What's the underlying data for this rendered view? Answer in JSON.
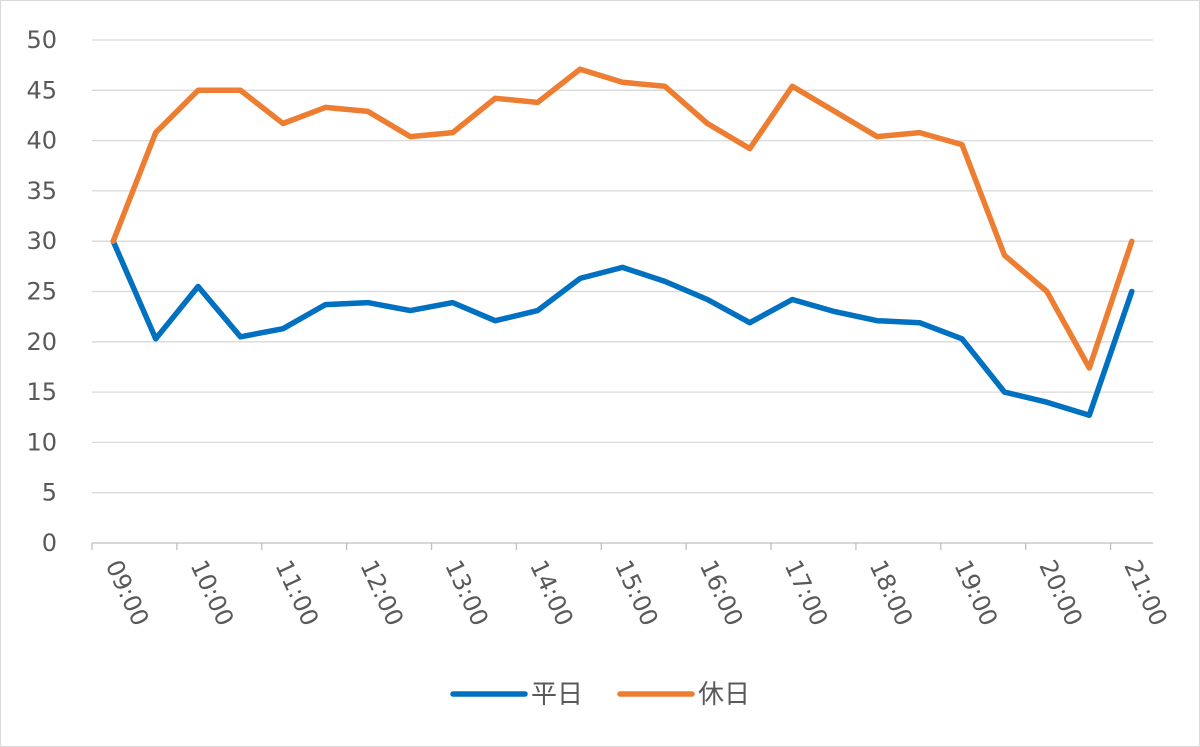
{
  "chart_data": {
    "type": "line",
    "title": "",
    "xlabel": "",
    "ylabel": "",
    "ylim": [
      0,
      50
    ],
    "ytick_step": 5,
    "grid": true,
    "legend_position": "bottom",
    "x_tick_labels": [
      "09:00",
      "10:00",
      "11:00",
      "12:00",
      "13:00",
      "14:00",
      "15:00",
      "16:00",
      "17:00",
      "18:00",
      "19:00",
      "20:00",
      "21:00"
    ],
    "x": [
      "09:00",
      "09:30",
      "10:00",
      "10:30",
      "11:00",
      "11:30",
      "12:00",
      "12:30",
      "13:00",
      "13:30",
      "14:00",
      "14:30",
      "15:00",
      "15:30",
      "16:00",
      "16:30",
      "17:00",
      "17:30",
      "18:00",
      "18:30",
      "19:00",
      "19:30",
      "20:00",
      "20:30",
      "21:00"
    ],
    "series": [
      {
        "name": "平日",
        "color": "#0070c0",
        "values": [
          30,
          20.3,
          25.5,
          20.5,
          21.3,
          23.7,
          23.9,
          23.1,
          23.9,
          22.1,
          23.1,
          26.3,
          27.4,
          26.0,
          24.2,
          21.9,
          24.2,
          23.0,
          22.1,
          21.9,
          20.3,
          15.0,
          14.0,
          12.7,
          25.0
        ]
      },
      {
        "name": "休日",
        "color": "#ed7d31",
        "values": [
          30,
          40.8,
          45.0,
          45.0,
          41.7,
          43.3,
          42.9,
          40.4,
          40.8,
          44.2,
          43.8,
          47.1,
          45.8,
          45.4,
          41.7,
          39.2,
          45.4,
          42.9,
          40.4,
          40.8,
          39.6,
          28.6,
          25.0,
          17.4,
          30.0
        ]
      }
    ]
  }
}
